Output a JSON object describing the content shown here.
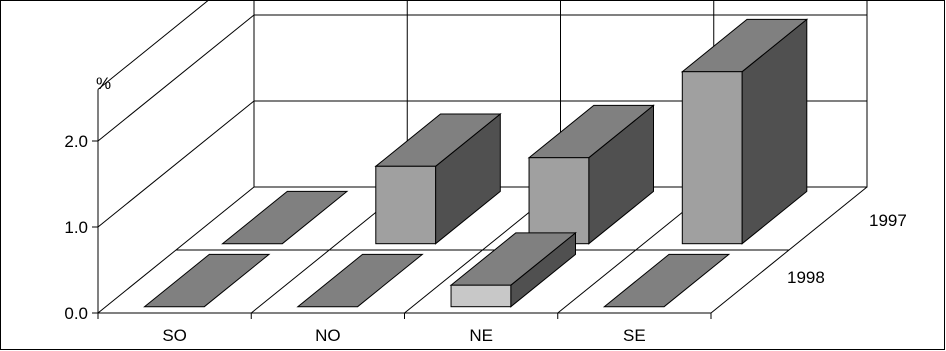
{
  "chart_data": {
    "type": "bar",
    "subtype": "3d-column",
    "ylabel": "%",
    "yticks": [
      "0.0",
      "1.0",
      "2.0"
    ],
    "ylim": [
      0,
      2.6
    ],
    "categories": [
      "SO",
      "NO",
      "NE",
      "SE"
    ],
    "series": [
      {
        "name": "1997",
        "values": [
          0.0,
          0.9,
          1.0,
          2.0
        ]
      },
      {
        "name": "1998",
        "values": [
          0.0,
          0.0,
          0.25,
          0.0
        ]
      }
    ],
    "colors": {
      "front_1997": "#a0a0a0",
      "front_1998": "#c8c8c8",
      "top": "#808080",
      "side": "#505050",
      "gridlines": "#000000"
    },
    "grid": true,
    "legend": "none"
  }
}
